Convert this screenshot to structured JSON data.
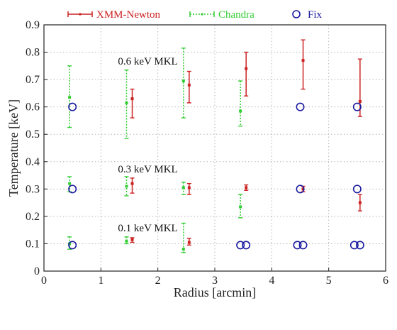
{
  "chart_data": {
    "type": "scatter",
    "title": "",
    "xlabel": "Radius [arcmin]",
    "ylabel": "Temperature [keV]",
    "xlim": [
      0,
      6
    ],
    "ylim": [
      0,
      0.9
    ],
    "xticks": [
      0,
      1,
      2,
      3,
      4,
      5,
      6
    ],
    "yticks": [
      0,
      0.1,
      0.2,
      0.3,
      0.4,
      0.5,
      0.6,
      0.7,
      0.8,
      0.9
    ],
    "xtick_labels": [
      "0",
      "1",
      "2",
      "3",
      "4",
      "5",
      "6"
    ],
    "ytick_labels": [
      "0",
      "0.1",
      "0.2",
      "0.3",
      "0.4",
      "0.5",
      "0.6",
      "0.7",
      "0.8",
      "0.9"
    ],
    "grid": true,
    "legend_position": "top",
    "legend": [
      {
        "label": "XMM-Newton",
        "color": "#cc2222",
        "marker": "errorbar"
      },
      {
        "label": "Chandra",
        "color": "#33cc33",
        "marker": "errorbar-dashed"
      },
      {
        "label": "Fix",
        "color": "#1a1aa0",
        "marker": "circle"
      }
    ],
    "annotations": [
      {
        "text": "0.6 keV MKL",
        "x": 1.3,
        "y": 0.755
      },
      {
        "text": "0.3 keV MKL",
        "x": 1.3,
        "y": 0.36
      },
      {
        "text": "0.1 keV MKL",
        "x": 1.3,
        "y": 0.145
      }
    ],
    "series": [
      {
        "name": "XMM-Newton",
        "color": "#cc2222",
        "style": "errorbar",
        "points": [
          {
            "x": 1.55,
            "y": 0.63,
            "ylo": 0.56,
            "yhi": 0.665
          },
          {
            "x": 2.55,
            "y": 0.68,
            "ylo": 0.615,
            "yhi": 0.73
          },
          {
            "x": 3.55,
            "y": 0.74,
            "ylo": 0.64,
            "yhi": 0.8
          },
          {
            "x": 4.55,
            "y": 0.77,
            "ylo": 0.665,
            "yhi": 0.845
          },
          {
            "x": 5.55,
            "y": 0.62,
            "ylo": 0.565,
            "yhi": 0.775
          },
          {
            "x": 1.55,
            "y": 0.32,
            "ylo": 0.285,
            "yhi": 0.34
          },
          {
            "x": 2.55,
            "y": 0.305,
            "ylo": 0.28,
            "yhi": 0.32
          },
          {
            "x": 3.55,
            "y": 0.305,
            "ylo": 0.295,
            "yhi": 0.315
          },
          {
            "x": 4.55,
            "y": 0.3,
            "ylo": 0.29,
            "yhi": 0.31
          },
          {
            "x": 5.55,
            "y": 0.25,
            "ylo": 0.22,
            "yhi": 0.28
          },
          {
            "x": 1.55,
            "y": 0.115,
            "ylo": 0.105,
            "yhi": 0.122
          },
          {
            "x": 2.55,
            "y": 0.105,
            "ylo": 0.095,
            "yhi": 0.12
          }
        ]
      },
      {
        "name": "Chandra",
        "color": "#33cc33",
        "style": "errorbar-dashed",
        "points": [
          {
            "x": 0.45,
            "y": 0.635,
            "ylo": 0.525,
            "yhi": 0.75
          },
          {
            "x": 1.45,
            "y": 0.615,
            "ylo": 0.485,
            "yhi": 0.735
          },
          {
            "x": 2.45,
            "y": 0.695,
            "ylo": 0.56,
            "yhi": 0.815
          },
          {
            "x": 3.45,
            "y": 0.585,
            "ylo": 0.53,
            "yhi": 0.695
          },
          {
            "x": 0.45,
            "y": 0.32,
            "ylo": 0.29,
            "yhi": 0.345
          },
          {
            "x": 1.45,
            "y": 0.31,
            "ylo": 0.275,
            "yhi": 0.345
          },
          {
            "x": 2.45,
            "y": 0.305,
            "ylo": 0.28,
            "yhi": 0.325
          },
          {
            "x": 3.45,
            "y": 0.235,
            "ylo": 0.195,
            "yhi": 0.28
          },
          {
            "x": 0.45,
            "y": 0.1,
            "ylo": 0.08,
            "yhi": 0.125
          },
          {
            "x": 1.45,
            "y": 0.11,
            "ylo": 0.1,
            "yhi": 0.125
          },
          {
            "x": 2.45,
            "y": 0.08,
            "ylo": 0.068,
            "yhi": 0.175
          }
        ]
      },
      {
        "name": "Fix",
        "color": "#1a1aa0",
        "style": "circle",
        "points": [
          {
            "x": 0.5,
            "y": 0.6
          },
          {
            "x": 4.5,
            "y": 0.6
          },
          {
            "x": 5.5,
            "y": 0.6
          },
          {
            "x": 0.5,
            "y": 0.3
          },
          {
            "x": 4.5,
            "y": 0.3
          },
          {
            "x": 5.5,
            "y": 0.3
          },
          {
            "x": 0.5,
            "y": 0.095
          },
          {
            "x": 3.45,
            "y": 0.095
          },
          {
            "x": 3.55,
            "y": 0.095
          },
          {
            "x": 4.45,
            "y": 0.095
          },
          {
            "x": 4.55,
            "y": 0.095
          },
          {
            "x": 5.45,
            "y": 0.095
          },
          {
            "x": 5.55,
            "y": 0.095
          }
        ]
      }
    ]
  }
}
